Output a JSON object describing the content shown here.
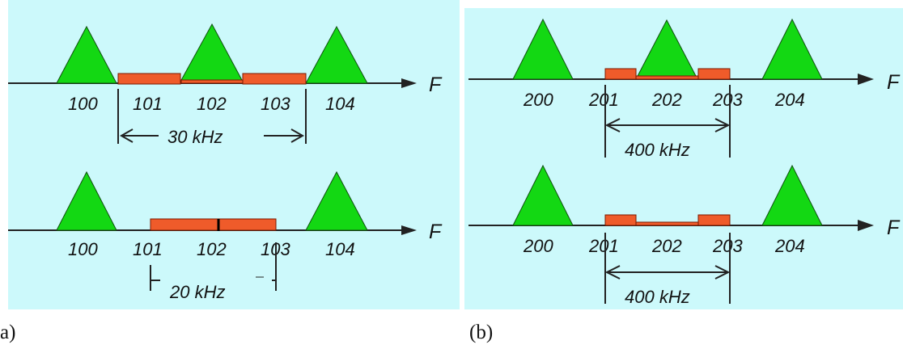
{
  "colors": {
    "background": "#ccf9fb",
    "signal_fill": "#13d813",
    "signal_stroke": "#0f4f0f",
    "band_fill": "#ef5b2a",
    "band_stroke": "#7a1a00"
  },
  "panels": [
    {
      "id": "a",
      "caption": "a)",
      "rows": [
        {
          "axis_label": "F",
          "ticks": [
            "100",
            "101",
            "102",
            "103",
            "104"
          ],
          "bandwidth_label": "30 kHz",
          "signals": [
            "100",
            "102",
            "104"
          ],
          "bands": [
            [
              "101",
              "102"
            ],
            [
              "102",
              "103"
            ]
          ]
        },
        {
          "axis_label": "F",
          "ticks": [
            "100",
            "101",
            "102",
            "103",
            "104"
          ],
          "bandwidth_label": "20 kHz",
          "signals": [
            "100",
            "104"
          ],
          "bands": [
            [
              "101",
              "102"
            ],
            [
              "102",
              "103"
            ]
          ]
        }
      ]
    },
    {
      "id": "b",
      "caption": "(b)",
      "rows": [
        {
          "axis_label": "F",
          "ticks": [
            "200",
            "201",
            "202",
            "203",
            "204"
          ],
          "bandwidth_label": "400 kHz",
          "signals": [
            "200",
            "202",
            "204"
          ],
          "bands": [
            [
              "201"
            ],
            [
              "203"
            ]
          ]
        },
        {
          "axis_label": "F",
          "ticks": [
            "200",
            "201",
            "202",
            "203",
            "204"
          ],
          "bandwidth_label": "400 kHz",
          "signals": [
            "200",
            "204"
          ],
          "bands": [
            [
              "201"
            ],
            [
              "203"
            ]
          ]
        }
      ]
    }
  ]
}
